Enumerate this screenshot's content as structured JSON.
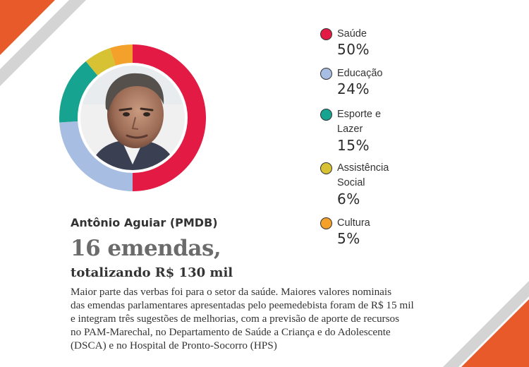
{
  "colors": {
    "saude": "#e31b44",
    "educacao": "#a7bde2",
    "esporte": "#16a390",
    "assistencia": "#d7c233",
    "cultura": "#f3a12b",
    "accent_orange": "#e85a2a",
    "accent_gray": "#d4d4d4"
  },
  "chart_data": {
    "type": "pie",
    "categories": [
      "Saúde",
      "Educação",
      "Esporte e Lazer",
      "Assistência Social",
      "Cultura"
    ],
    "values": [
      50,
      24,
      15,
      6,
      5
    ],
    "unit": "%"
  },
  "legend": {
    "items": [
      {
        "label": "Saúde",
        "value": "50%"
      },
      {
        "label": "Educação",
        "value": "24%"
      },
      {
        "label": "Esporte e Lazer",
        "value": "15%"
      },
      {
        "label": "Assistência Social",
        "value": "6%"
      },
      {
        "label": "Cultura",
        "value": "5%"
      }
    ]
  },
  "photo": {
    "icon": "portrait-photo"
  },
  "profile": {
    "name": "Antônio Aguiar (PMDB)",
    "headline": "16 emendas,",
    "subhead": "totalizando R$ 130 mil",
    "body_lines": [
      "Maior parte das verbas foi para o setor da saúde. Maiores valores nominais",
      "das emendas parlamentares apresentadas pelo peemedebista foram de R$ 15 mil",
      "e integram três sugestões de melhorias, com a previsão de aporte de recursos",
      "no PAM-Marechal, no Departamento de Saúde a Criança e do Adolescente",
      "(DSCA) e no Hospital de Pronto-Socorro (HPS)"
    ]
  }
}
